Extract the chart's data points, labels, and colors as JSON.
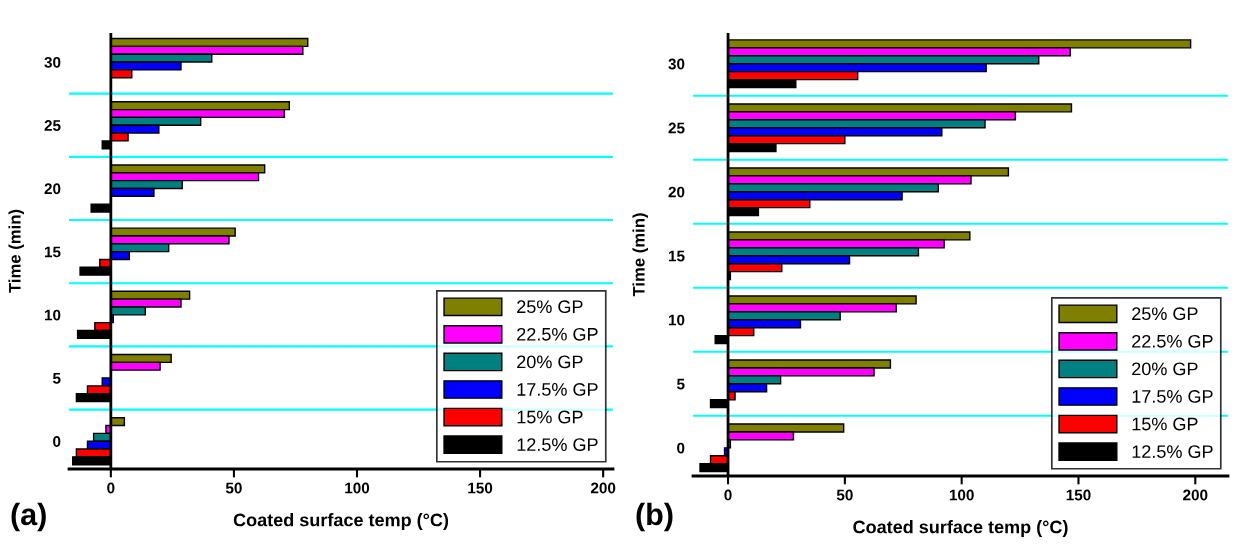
{
  "chart_data": [
    {
      "type": "bar",
      "orientation": "horizontal",
      "xlabel": "Coated surface temp (°C)",
      "ylabel": "Time (min)",
      "annotations": [
        "(a)"
      ],
      "x": [
        30,
        25,
        20,
        15,
        10,
        5,
        0
      ],
      "xlim": [
        -17,
        204
      ],
      "xticks": [
        0,
        50,
        100,
        150,
        200
      ],
      "ylim": [
        -2.2,
        32.3
      ],
      "yticks": [
        0,
        5,
        10,
        15,
        20,
        25,
        30
      ],
      "ref_lines": [
        {
          "axis": "x",
          "value": 0,
          "color": "#000000"
        },
        {
          "axis": "y",
          "value": 2.5,
          "color": "#00ffff"
        },
        {
          "axis": "y",
          "value": 7.5,
          "color": "#00ffff"
        },
        {
          "axis": "y",
          "value": 12.5,
          "color": "#00ffff"
        },
        {
          "axis": "y",
          "value": 17.5,
          "color": "#00ffff"
        },
        {
          "axis": "y",
          "value": 22.5,
          "color": "#00ffff"
        },
        {
          "axis": "y",
          "value": 27.5,
          "color": "#00ffff"
        }
      ],
      "legend": "bottom right",
      "grid": false,
      "series": [
        {
          "name": "25% GP",
          "color": "#808000",
          "values": [
            80,
            72.5,
            62.5,
            50.5,
            32,
            24.5,
            5.5
          ]
        },
        {
          "name": "22.5% GP",
          "color": "#ff00ff",
          "values": [
            78,
            70.5,
            60,
            48,
            28.5,
            20,
            -2
          ]
        },
        {
          "name": "20% GP",
          "color": "#008080",
          "values": [
            41,
            36.5,
            29,
            23.5,
            14,
            null,
            -7
          ]
        },
        {
          "name": "17.5% GP",
          "color": "#0000ff",
          "values": [
            28.5,
            19.5,
            17.5,
            7.5,
            1,
            -3.5,
            -9.5
          ]
        },
        {
          "name": "15% GP",
          "color": "#ff0000",
          "values": [
            8.5,
            7,
            null,
            -4.5,
            -6.5,
            -9.5,
            -14
          ]
        },
        {
          "name": "12.5% GP",
          "color": "#000000",
          "values": [
            null,
            -3.5,
            -8,
            -12.5,
            -13.5,
            -14,
            -15.5
          ]
        }
      ]
    },
    {
      "type": "bar",
      "orientation": "horizontal",
      "xlabel": "Coated surface temp (°C)",
      "ylabel": "Time (min)",
      "annotations": [
        "(b)"
      ],
      "x": [
        30,
        25,
        20,
        15,
        10,
        5,
        0
      ],
      "xlim": [
        -15,
        214
      ],
      "xticks": [
        0,
        50,
        100,
        150,
        200
      ],
      "ylim": [
        -2.2,
        32.4
      ],
      "yticks": [
        0,
        5,
        10,
        15,
        20,
        25,
        30
      ],
      "ref_lines": [
        {
          "axis": "x",
          "value": 0,
          "color": "#000000"
        },
        {
          "axis": "y",
          "value": 2.5,
          "color": "#00ffff"
        },
        {
          "axis": "y",
          "value": 7.5,
          "color": "#00ffff"
        },
        {
          "axis": "y",
          "value": 12.5,
          "color": "#00ffff"
        },
        {
          "axis": "y",
          "value": 17.5,
          "color": "#00ffff"
        },
        {
          "axis": "y",
          "value": 22.5,
          "color": "#00ffff"
        },
        {
          "axis": "y",
          "value": 27.5,
          "color": "#00ffff"
        }
      ],
      "legend": "bottom right",
      "grid": false,
      "series": [
        {
          "name": "25% GP",
          "color": "#808000",
          "values": [
            198,
            147,
            120,
            103.5,
            80.5,
            69.5,
            49.5
          ]
        },
        {
          "name": "22.5% GP",
          "color": "#ff00ff",
          "values": [
            146.5,
            123,
            104,
            92.5,
            72,
            62.5,
            28
          ]
        },
        {
          "name": "20% GP",
          "color": "#008080",
          "values": [
            133,
            110,
            90,
            81.5,
            48,
            22.5,
            1
          ]
        },
        {
          "name": "17.5% GP",
          "color": "#0000ff",
          "values": [
            110.5,
            91.5,
            74.5,
            52,
            31,
            16.5,
            -1.5
          ]
        },
        {
          "name": "15% GP",
          "color": "#ff0000",
          "values": [
            55.5,
            50,
            35,
            23,
            11,
            3,
            -7.5
          ]
        },
        {
          "name": "12.5% GP",
          "color": "#000000",
          "values": [
            29,
            20.5,
            13,
            1,
            -5.5,
            -7.5,
            -12
          ]
        }
      ]
    }
  ]
}
